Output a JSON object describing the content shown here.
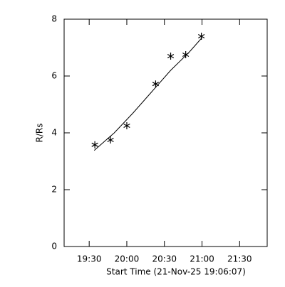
{
  "chart_data": {
    "type": "scatter",
    "xlabel": "Start Time (21-Nov-25 19:06:07)",
    "ylabel": "R/Rs",
    "xlim": [
      1150,
      1312
    ],
    "ylim": [
      0,
      8
    ],
    "xticks": [
      {
        "value": 1170,
        "label": "19:30"
      },
      {
        "value": 1200,
        "label": "20:00"
      },
      {
        "value": 1230,
        "label": "20:30"
      },
      {
        "value": 1260,
        "label": "21:00"
      },
      {
        "value": 1290,
        "label": "21:30"
      }
    ],
    "yticks": [
      0,
      2,
      4,
      6,
      8
    ],
    "color": "#000000",
    "series": [
      {
        "marker": "asterisk",
        "x": [
          1174.5,
          1187,
          1200,
          1223,
          1235,
          1247,
          1259.5
        ],
        "values": [
          3.58,
          3.75,
          4.25,
          5.72,
          6.7,
          6.75,
          7.4
        ]
      },
      {
        "marker": "line",
        "x": [
          1174,
          1190,
          1205,
          1220,
          1235,
          1250,
          1260
        ],
        "values": [
          3.38,
          4.0,
          4.7,
          5.45,
          6.2,
          6.85,
          7.35
        ]
      }
    ]
  }
}
